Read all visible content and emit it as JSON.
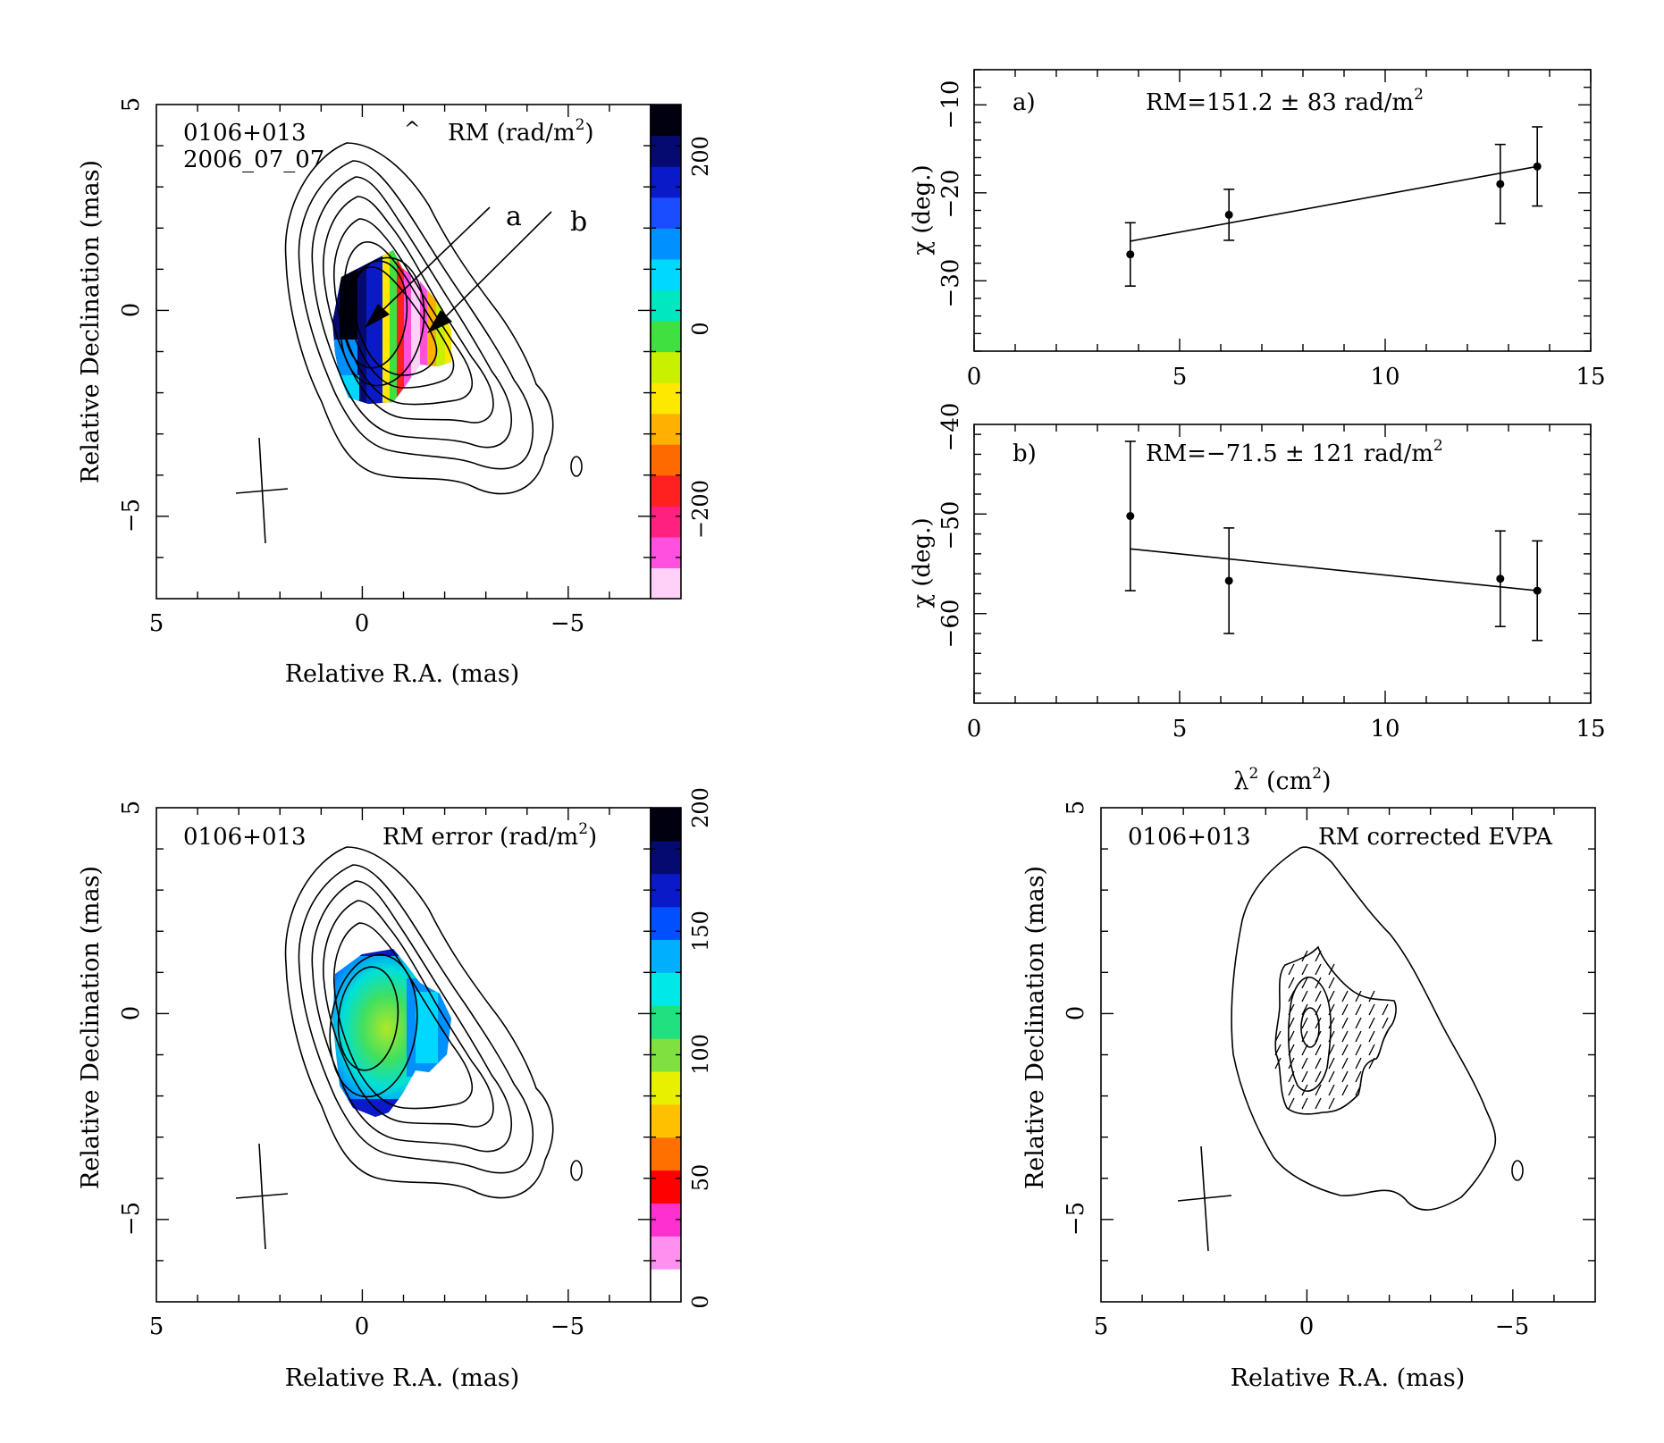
{
  "colors": {
    "rm_colormap": [
      "#ffd0f8",
      "#ff50e0",
      "#ff2080",
      "#ff2020",
      "#ff6a00",
      "#ffb000",
      "#ffe800",
      "#c8f000",
      "#40e040",
      "#00e8c0",
      "#00d8ff",
      "#0090ff",
      "#1a4dff",
      "#0a1ac8",
      "#050a70",
      "#000010"
    ],
    "rm_error_colormap": [
      "#ffffff",
      "#ff90f0",
      "#ff30d0",
      "#ff0000",
      "#ff7000",
      "#ffc000",
      "#e8f000",
      "#80e040",
      "#20e080",
      "#00e8e8",
      "#00b0ff",
      "#0050ff",
      "#0a1ac8",
      "#050a70",
      "#000010"
    ]
  },
  "panels": {
    "rm_map": {
      "source": "0106+013",
      "date": "2006_07_07",
      "mark": "^",
      "quantity": "RM (rad/m",
      "quantity_sup": "2",
      "quantity_tail": ")",
      "arrow_label_a": "a",
      "arrow_label_b": "b",
      "xlabel": "Relative R.A. (mas)",
      "ylabel": "Relative Declination (mas)",
      "xticks": [
        "5",
        "0",
        "−5"
      ],
      "yticks": [
        "5",
        "0",
        "−5"
      ],
      "colorbar_ticks": [
        "200",
        "0",
        "−200"
      ]
    },
    "rm_error_map": {
      "source": "0106+013",
      "quantity": "RM error (rad/m",
      "quantity_sup": "2",
      "quantity_tail": ")",
      "xlabel": "Relative R.A. (mas)",
      "ylabel": "Relative Declination (mas)",
      "xticks": [
        "5",
        "0",
        "−5"
      ],
      "yticks": [
        "5",
        "0",
        "−5"
      ],
      "colorbar_ticks": [
        "200",
        "150",
        "100",
        "50",
        "0"
      ]
    },
    "evpa_map": {
      "source": "0106+013",
      "quantity": "RM corrected EVPA",
      "xlabel": "Relative R.A. (mas)",
      "ylabel": "Relative Declination (mas)",
      "xticks": [
        "5",
        "0",
        "−5"
      ],
      "yticks": [
        "5",
        "0",
        "−5"
      ]
    },
    "fit_a": {
      "tag": "a)",
      "rm_text": "RM=151.2 ± 83 rad/m",
      "rm_sup": "2",
      "ylabel": "χ (deg.)",
      "xticks": [
        "0",
        "5",
        "10",
        "15"
      ],
      "yticks": [
        "−10",
        "−20",
        "−30"
      ]
    },
    "fit_b": {
      "tag": "b)",
      "rm_text": "RM=−71.5 ± 121 rad/m",
      "rm_sup": "2",
      "ylabel": "χ (deg.)",
      "xticks": [
        "0",
        "5",
        "10",
        "15"
      ],
      "yticks": [
        "−40",
        "−50",
        "−60"
      ],
      "xlabel": "λ",
      "xlabel_sup": "2",
      "xlabel_tail": " (cm",
      "xlabel_sup2": "2",
      "xlabel_end": ")"
    }
  },
  "chart_data": [
    {
      "type": "heatmap",
      "title": "RM (rad/m^2)",
      "xlabel": "Relative R.A. (mas)",
      "ylabel": "Relative Declination (mas)",
      "xlim": [
        5,
        -7
      ],
      "ylim": [
        -7,
        5
      ],
      "colorbar_range": [
        -300,
        250
      ],
      "colorbar_ticks": [
        200,
        0,
        -200
      ]
    },
    {
      "type": "scatter",
      "title": "a)",
      "annotation": "RM=151.2 ± 83 rad/m^2",
      "xlabel": "λ^2 (cm^2)",
      "ylabel": "χ (deg.)",
      "xlim": [
        0,
        15
      ],
      "ylim": [
        -38,
        -6
      ],
      "x": [
        3.8,
        6.2,
        12.8,
        13.7
      ],
      "y": [
        -27.0,
        -22.5,
        -19.0,
        -17.0
      ],
      "yerr": [
        3.6,
        2.9,
        4.5,
        4.5
      ],
      "fit": {
        "x": [
          3.8,
          13.7
        ],
        "y": [
          -25.5,
          -17.0
        ]
      }
    },
    {
      "type": "scatter",
      "title": "b)",
      "annotation": "RM=−71.5 ± 121 rad/m^2",
      "xlabel": "λ^2 (cm^2)",
      "ylabel": "χ (deg.)",
      "xlim": [
        0,
        15
      ],
      "ylim": [
        -69,
        -41
      ],
      "x": [
        3.8,
        6.2,
        12.8,
        13.7
      ],
      "y": [
        -50.2,
        -56.7,
        -56.5,
        -57.7
      ],
      "yerr": [
        7.5,
        5.3,
        4.8,
        5.0
      ],
      "fit": {
        "x": [
          3.8,
          13.7
        ],
        "y": [
          -53.5,
          -57.7
        ]
      }
    },
    {
      "type": "heatmap",
      "title": "RM error (rad/m^2)",
      "xlabel": "Relative R.A. (mas)",
      "ylabel": "Relative Declination (mas)",
      "xlim": [
        5,
        -7
      ],
      "ylim": [
        -7,
        5
      ],
      "colorbar_range": [
        0,
        200
      ],
      "colorbar_ticks": [
        200,
        150,
        100,
        50,
        0
      ]
    },
    {
      "type": "scatter",
      "title": "RM corrected EVPA",
      "xlabel": "Relative R.A. (mas)",
      "ylabel": "Relative Declination (mas)",
      "xlim": [
        5,
        -7
      ],
      "ylim": [
        -7,
        5
      ]
    }
  ]
}
